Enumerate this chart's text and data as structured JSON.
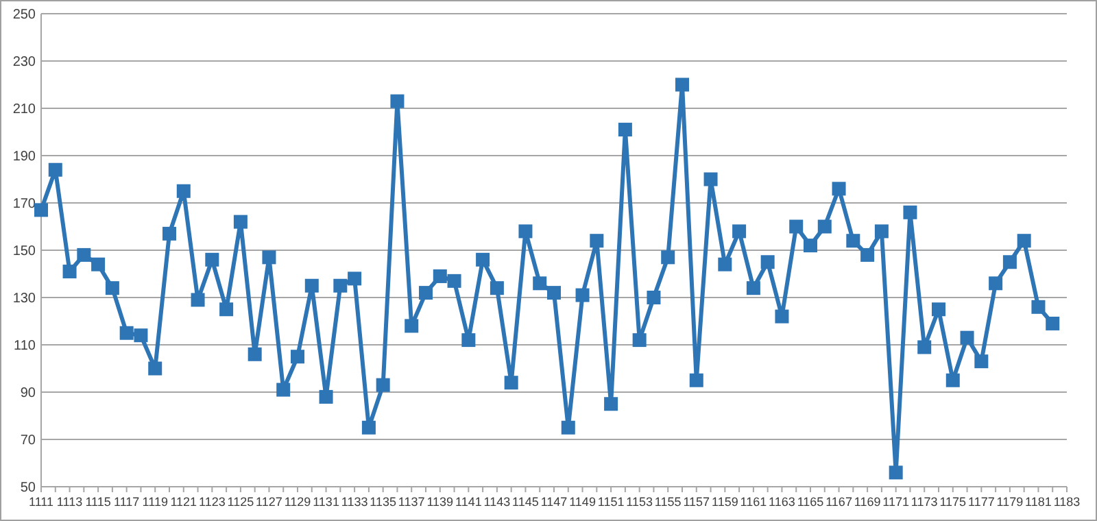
{
  "chart_data": {
    "type": "line",
    "categories": [
      "1111",
      null,
      "1113",
      null,
      "1115",
      null,
      "1117",
      null,
      "1119",
      null,
      "1121",
      null,
      "1123",
      null,
      "1125",
      null,
      "1127",
      null,
      "1129",
      null,
      "1131",
      null,
      "1133",
      null,
      "1135",
      null,
      "1137",
      null,
      "1139",
      null,
      "1141",
      null,
      "1143",
      null,
      "1145",
      null,
      "1147",
      null,
      "1149",
      null,
      "1151",
      null,
      "1153",
      null,
      "1155",
      null,
      "1157",
      null,
      "1159",
      null,
      "1161",
      null,
      "1163",
      null,
      "1165",
      null,
      "1167",
      null,
      "1169",
      null,
      "1171",
      null,
      "1173",
      null,
      "1175",
      null,
      "1177",
      null,
      "1179",
      null,
      "1181",
      null,
      "1183"
    ],
    "series": [
      {
        "color": "#2e75b6",
        "values": [
          167,
          184,
          141,
          148,
          144,
          134,
          115,
          114,
          100,
          157,
          175,
          129,
          146,
          125,
          162,
          106,
          147,
          91,
          105,
          135,
          88,
          135,
          138,
          75,
          93,
          213,
          118,
          132,
          139,
          137,
          112,
          146,
          134,
          94,
          158,
          136,
          132,
          75,
          131,
          154,
          85,
          201,
          112,
          130,
          147,
          220,
          95,
          180,
          144,
          158,
          134,
          145,
          122,
          160,
          152,
          160,
          176,
          154,
          148,
          158,
          56,
          166,
          109,
          125,
          95,
          113,
          103,
          136,
          145,
          154,
          126,
          119,
          null
        ]
      }
    ],
    "ylim": [
      50,
      250
    ],
    "yticks": [
      50,
      70,
      90,
      110,
      130,
      150,
      170,
      190,
      210,
      230,
      250
    ],
    "grid": "y",
    "marker": "square",
    "line_style": "solid"
  }
}
